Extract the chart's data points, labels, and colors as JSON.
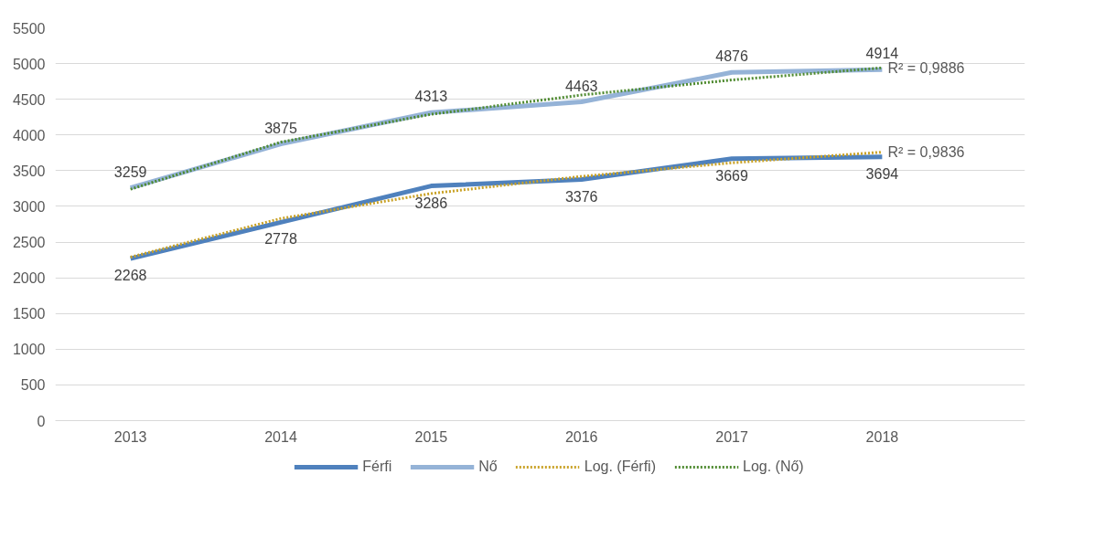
{
  "chart_data": {
    "type": "line",
    "categories": [
      "2013",
      "2014",
      "2015",
      "2016",
      "2017",
      "2018"
    ],
    "series": [
      {
        "name": "Férfi",
        "color": "#4f81bd",
        "values": [
          2268,
          2778,
          3286,
          3376,
          3669,
          3694
        ],
        "value_labels": [
          "2268",
          "2778",
          "3286",
          "3376",
          "3669",
          "3694"
        ]
      },
      {
        "name": "Nő",
        "color": "#95b3d7",
        "values": [
          3259,
          3875,
          4313,
          4463,
          4876,
          4914
        ],
        "value_labels": [
          "3259",
          "3875",
          "4313",
          "4463",
          "4876",
          "4914"
        ]
      },
      {
        "name": "Log. (Férfi)",
        "color": "#c9a227",
        "values": [
          2290,
          2830,
          3180,
          3420,
          3610,
          3760
        ],
        "line_style": "dotted"
      },
      {
        "name": "Log. (Nő)",
        "color": "#4e8a2f",
        "values": [
          3240,
          3900,
          4290,
          4560,
          4770,
          4940
        ],
        "line_style": "dotted"
      }
    ],
    "annotations": [
      {
        "text": "R² = 0,9886",
        "x": "2018",
        "y": 4940
      },
      {
        "text": "R² = 0,9836",
        "x": "2018",
        "y": 3760
      }
    ],
    "ylim": [
      0,
      5500
    ],
    "yticks": [
      0,
      500,
      1000,
      1500,
      2000,
      2500,
      3000,
      3500,
      4000,
      4500,
      5000,
      5500
    ],
    "grid": "y",
    "legend": "bottom",
    "line_style": "solid"
  }
}
